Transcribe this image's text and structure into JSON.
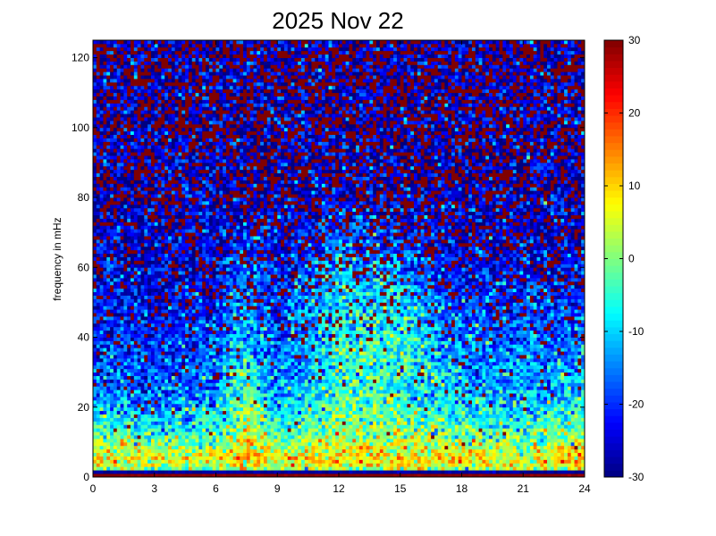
{
  "chart_data": {
    "type": "heatmap",
    "title": "2025 Nov 22",
    "xlabel": "",
    "ylabel": "frequency in mHz",
    "xlim": [
      0,
      24
    ],
    "ylim": [
      0,
      125
    ],
    "xticks": [
      "0",
      "3",
      "6",
      "9",
      "12",
      "15",
      "18",
      "21",
      "24"
    ],
    "yticks": [
      "0",
      "20",
      "40",
      "60",
      "80",
      "100",
      "120"
    ],
    "time_bin_hours": 0.1666667,
    "freq_bin_mhz": 1,
    "colormap": "jet",
    "colorbar": {
      "range": [
        -30,
        30
      ],
      "ticks": [
        "-30",
        "-20",
        "-10",
        "0",
        "10",
        "20",
        "30"
      ]
    },
    "grid": false,
    "approx_power_db": {
      "hours": [
        0,
        3,
        6,
        7.5,
        9,
        12,
        15,
        18,
        21,
        24
      ],
      "freqs_mhz": [
        0.5,
        1.5,
        2.5,
        5,
        15,
        25,
        35,
        45,
        55,
        65,
        80,
        100,
        120
      ],
      "values": [
        [
          30,
          30,
          30,
          30,
          30,
          30,
          30,
          30,
          30,
          30
        ],
        [
          -28,
          -28,
          -28,
          -28,
          -28,
          -28,
          -28,
          -28,
          -28,
          -28
        ],
        [
          2,
          0,
          0,
          6,
          2,
          4,
          4,
          2,
          2,
          4
        ],
        [
          8,
          6,
          5,
          12,
          6,
          10,
          10,
          8,
          7,
          10
        ],
        [
          -5,
          -8,
          -8,
          5,
          -8,
          0,
          0,
          -5,
          -8,
          0
        ],
        [
          -15,
          -18,
          -15,
          -2,
          -15,
          -5,
          -5,
          -12,
          -12,
          -10
        ],
        [
          -18,
          -20,
          -18,
          -8,
          -18,
          -5,
          -5,
          -15,
          -15,
          -15
        ],
        [
          -20,
          -22,
          -20,
          -12,
          -20,
          -8,
          -7,
          -18,
          -18,
          -18
        ],
        [
          -22,
          -24,
          -22,
          -15,
          -22,
          -10,
          -12,
          -22,
          -20,
          -20
        ],
        [
          -24,
          -25,
          -24,
          -20,
          -24,
          -15,
          -18,
          -24,
          -24,
          -24
        ],
        [
          -25,
          -25,
          -25,
          -25,
          -25,
          -25,
          -25,
          -25,
          -25,
          -25
        ],
        [
          -25,
          -25,
          -25,
          -25,
          -25,
          -25,
          -25,
          -25,
          -25,
          -25
        ],
        [
          -25,
          -25,
          -25,
          -25,
          -25,
          -25,
          -25,
          -25,
          -25,
          -25
        ]
      ],
      "saturated_fraction": [
        0,
        0,
        0,
        0,
        0.01,
        0.03,
        0.06,
        0.1,
        0.15,
        0.2,
        0.3,
        0.35,
        0.35
      ]
    }
  }
}
